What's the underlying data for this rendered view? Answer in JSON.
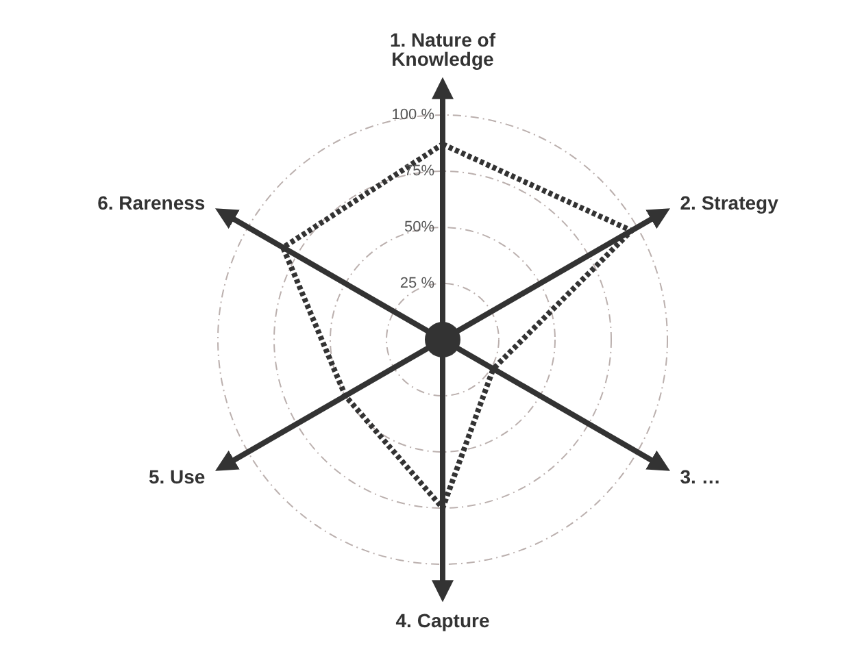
{
  "chart_data": {
    "type": "radar",
    "categories": [
      "1. Nature of Knowledge",
      "2. Strategy",
      "3. …",
      "4. Capture",
      "5. Use",
      "6. Rareness"
    ],
    "series": [
      {
        "color": "#333333",
        "values": [
          87,
          97,
          26,
          75,
          50,
          82
        ]
      }
    ],
    "ylim": [
      0,
      100
    ],
    "yticks": [
      {
        "value": 25,
        "label": "25 %"
      },
      {
        "value": 50,
        "label": "50%"
      },
      {
        "value": 75,
        "label": "75%"
      },
      {
        "value": 100,
        "label": "100 %"
      }
    ],
    "grid": true,
    "legend": false,
    "marker": "none",
    "line_style": "dotted"
  }
}
